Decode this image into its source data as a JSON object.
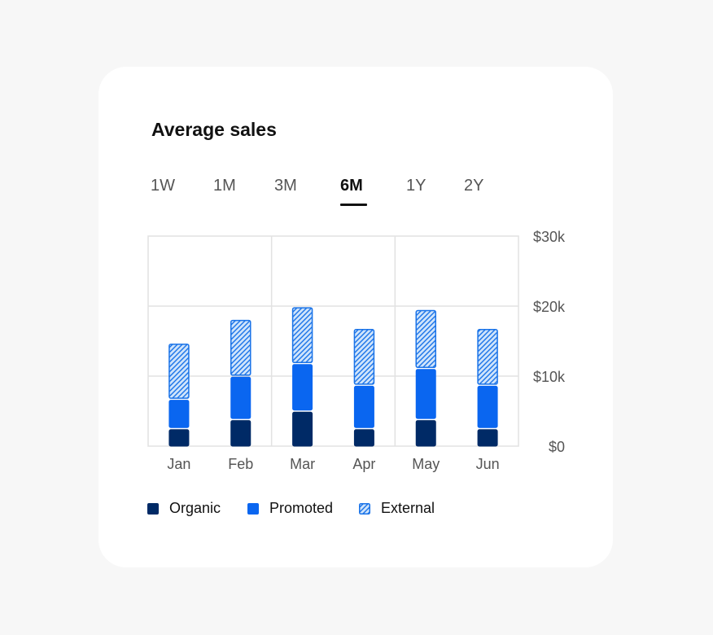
{
  "card": {
    "title": "Average sales",
    "tabs": [
      {
        "label": "1W",
        "active": false
      },
      {
        "label": "1M",
        "active": false
      },
      {
        "label": "3M",
        "active": false
      },
      {
        "label": "6M",
        "active": true
      },
      {
        "label": "1Y",
        "active": false
      },
      {
        "label": "2Y",
        "active": false
      }
    ]
  },
  "colors": {
    "organic": "#002a66",
    "promoted": "#0a66f0",
    "external_fill": "#cfe4fb",
    "external_stroke": "#1a73e8",
    "grid": "#e2e2e2",
    "axis_text": "#555555"
  },
  "chart_data": {
    "type": "bar",
    "stacked": true,
    "categories": [
      "Jan",
      "Feb",
      "Mar",
      "Apr",
      "May",
      "Jun"
    ],
    "series": [
      {
        "name": "Organic",
        "key": "organic",
        "values": [
          2500,
          3800,
          5000,
          2500,
          3800,
          2500
        ]
      },
      {
        "name": "Promoted",
        "key": "promoted",
        "values": [
          4200,
          6200,
          6800,
          6200,
          7300,
          6200
        ]
      },
      {
        "name": "External",
        "key": "external",
        "values": [
          8000,
          8100,
          8100,
          8100,
          8400,
          8100
        ]
      }
    ],
    "ylim": [
      0,
      30000
    ],
    "yticks": [
      0,
      10000,
      20000,
      30000
    ],
    "ytick_labels": [
      "$0",
      "$10k",
      "$20k",
      "$30k"
    ],
    "y_axis_position": "right",
    "grid": true,
    "legend_position": "bottom-left"
  }
}
